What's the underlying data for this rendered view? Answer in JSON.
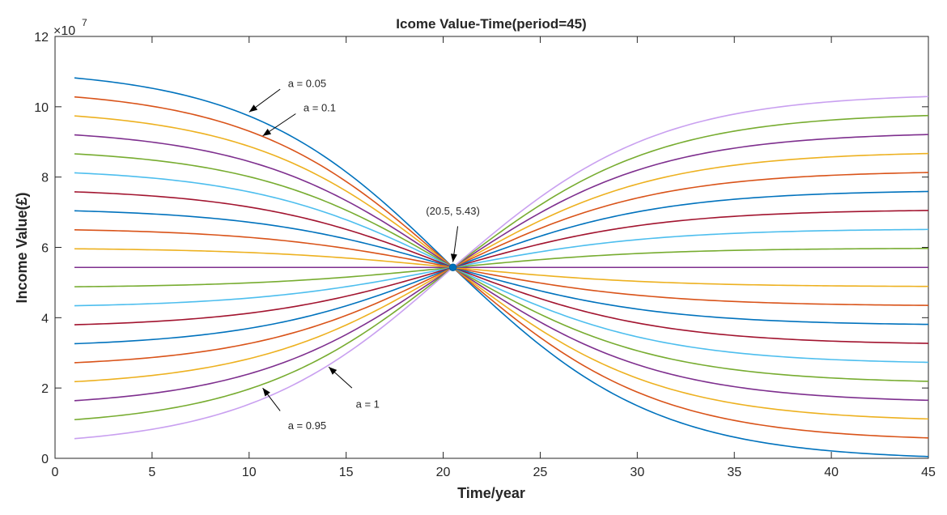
{
  "chart_data": {
    "type": "line",
    "title": "Icome Value-Time(period=45)",
    "xlabel": "Time/year",
    "ylabel": "Income Value(｡)",
    "ylabel_text": "Income Value(£)",
    "y_multiplier": "×10",
    "y_multiplier_base": "10",
    "y_multiplier_exp": "7",
    "xlim": [
      0,
      45
    ],
    "ylim": [
      0,
      12
    ],
    "xticks": [
      0,
      5,
      10,
      15,
      20,
      25,
      30,
      35,
      40,
      45
    ],
    "yticks": [
      0,
      2,
      4,
      6,
      8,
      10,
      12
    ],
    "grid": false,
    "x_start": 1,
    "x_end": 45,
    "center_point": {
      "x": 20.5,
      "y": 5.43,
      "label": "(20.5, 5.43)"
    },
    "series": [
      {
        "start": 10.82,
        "end": 0.05,
        "color": "#0072BD"
      },
      {
        "start": 10.28,
        "end": 0.58,
        "color": "#D95319"
      },
      {
        "start": 9.74,
        "end": 1.12,
        "color": "#EDB120"
      },
      {
        "start": 9.2,
        "end": 1.65,
        "color": "#7E2F8E"
      },
      {
        "start": 8.66,
        "end": 2.19,
        "color": "#77AC30"
      },
      {
        "start": 8.12,
        "end": 2.73,
        "color": "#4DBEEE"
      },
      {
        "start": 7.58,
        "end": 3.27,
        "color": "#A2142F"
      },
      {
        "start": 7.04,
        "end": 3.81,
        "color": "#0072BD"
      },
      {
        "start": 6.5,
        "end": 4.35,
        "color": "#D95319"
      },
      {
        "start": 5.96,
        "end": 4.89,
        "color": "#EDB120"
      },
      {
        "start": 5.43,
        "end": 5.43,
        "color": "#7E2F8E"
      },
      {
        "start": 4.88,
        "end": 5.97,
        "color": "#77AC30"
      },
      {
        "start": 4.34,
        "end": 6.51,
        "color": "#4DBEEE"
      },
      {
        "start": 3.8,
        "end": 7.05,
        "color": "#A2142F"
      },
      {
        "start": 3.26,
        "end": 7.59,
        "color": "#0072BD"
      },
      {
        "start": 2.72,
        "end": 8.13,
        "color": "#D95319"
      },
      {
        "start": 2.18,
        "end": 8.67,
        "color": "#EDB120"
      },
      {
        "start": 1.64,
        "end": 9.21,
        "color": "#7E2F8E"
      },
      {
        "start": 1.1,
        "end": 9.75,
        "color": "#77AC30"
      },
      {
        "start": 0.56,
        "end": 10.29,
        "color": "#C9A0F0"
      }
    ],
    "annotations": [
      {
        "text": "a = 0.05",
        "tx": 12.0,
        "ty": 10.68,
        "ax": 10.0,
        "ay": 9.85,
        "anchor": "start",
        "lx": 11.6,
        "ly": 10.5
      },
      {
        "text": "a = 0.1",
        "tx": 12.8,
        "ty": 9.98,
        "ax": 10.7,
        "ay": 9.17,
        "anchor": "start",
        "lx": 12.4,
        "ly": 9.8
      },
      {
        "text": "a = 1",
        "tx": 15.5,
        "ty": 1.55,
        "ax": 14.1,
        "ay": 2.6,
        "anchor": "start",
        "lx": 15.3,
        "ly": 2.0
      },
      {
        "text": "a = 0.95",
        "tx": 12.0,
        "ty": 0.95,
        "ax": 10.7,
        "ay": 2.0,
        "anchor": "start",
        "lx": 11.6,
        "ly": 1.35
      },
      {
        "text": "(20.5, 5.43)",
        "tx": 20.5,
        "ty": 7.05,
        "ax": 20.5,
        "ay": 5.58,
        "anchor": "middle",
        "lx": 20.75,
        "ly": 6.6
      }
    ]
  }
}
